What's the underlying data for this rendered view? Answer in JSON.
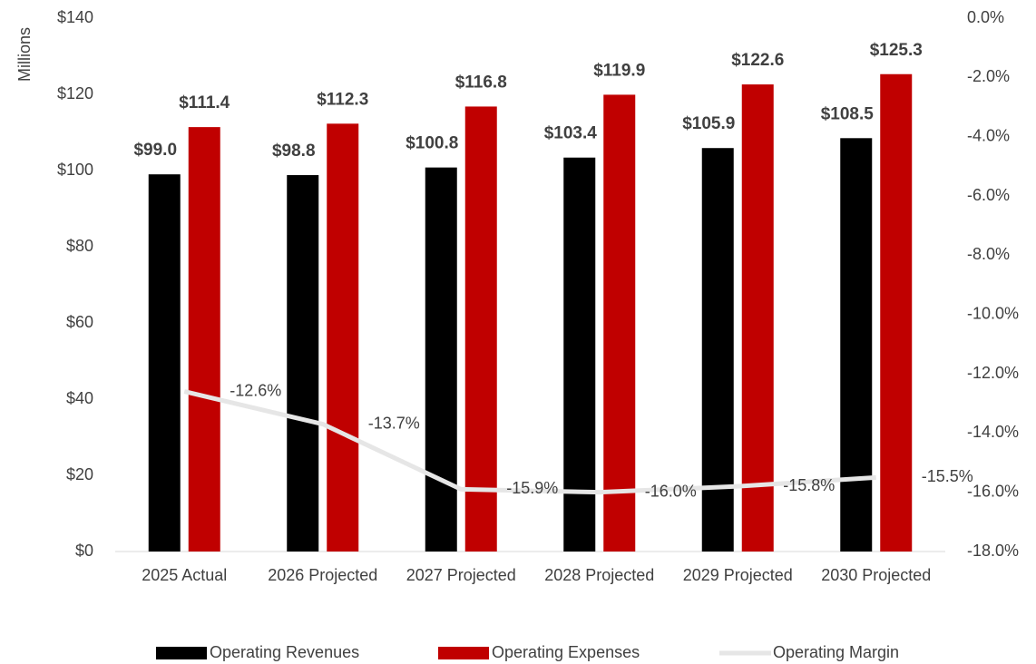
{
  "chart_data": {
    "type": "bar_line",
    "y_axis_label": "Millions",
    "categories": [
      "2025 Actual",
      "2026 Projected",
      "2027 Projected",
      "2028 Projected",
      "2029 Projected",
      "2030 Projected"
    ],
    "series": [
      {
        "name": "Operating Revenues",
        "color": "#000000",
        "type": "bar",
        "values": [
          99.0,
          98.8,
          100.8,
          103.4,
          105.9,
          108.5
        ],
        "value_labels": [
          "$99.0",
          "$98.8",
          "$100.8",
          "$103.4",
          "$105.9",
          "$108.5"
        ]
      },
      {
        "name": "Operating Expenses",
        "color": "#c00000",
        "type": "bar",
        "values": [
          111.4,
          112.3,
          116.8,
          119.9,
          122.6,
          125.3
        ],
        "value_labels": [
          "$111.4",
          "$112.3",
          "$116.8",
          "$119.9",
          "$122.6",
          "$125.3"
        ]
      },
      {
        "name": "Operating Margin",
        "color": "#e6e6e6",
        "type": "line",
        "axis": "y2",
        "values": [
          -12.6,
          -13.7,
          -15.9,
          -16.0,
          -15.8,
          -15.5
        ],
        "value_labels": [
          "-12.6%",
          "-13.7%",
          "-15.9%",
          "-16.0%",
          "-15.8%",
          "-15.5%"
        ]
      }
    ],
    "ylim": [
      0,
      140
    ],
    "yticks": [
      {
        "value": 0,
        "label": "$0"
      },
      {
        "value": 20,
        "label": "$20"
      },
      {
        "value": 40,
        "label": "$40"
      },
      {
        "value": 60,
        "label": "$60"
      },
      {
        "value": 80,
        "label": "$80"
      },
      {
        "value": 100,
        "label": "$100"
      },
      {
        "value": 120,
        "label": "$120"
      },
      {
        "value": 140,
        "label": "$140"
      }
    ],
    "y2lim": [
      -18,
      0
    ],
    "y2ticks": [
      {
        "value": 0,
        "label": "0.0%"
      },
      {
        "value": -2,
        "label": "-2.0%"
      },
      {
        "value": -4,
        "label": "-4.0%"
      },
      {
        "value": -6,
        "label": "-6.0%"
      },
      {
        "value": -8,
        "label": "-8.0%"
      },
      {
        "value": -10,
        "label": "-10.0%"
      },
      {
        "value": -12,
        "label": "-12.0%"
      },
      {
        "value": -14,
        "label": "-14.0%"
      },
      {
        "value": -16,
        "label": "-16.0%"
      },
      {
        "value": -18,
        "label": "-18.0%"
      }
    ],
    "legend": "bottom"
  }
}
